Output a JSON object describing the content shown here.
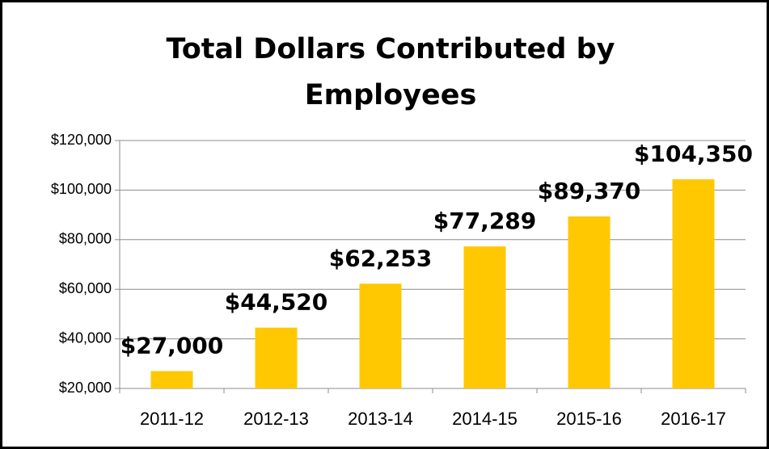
{
  "chart_data": {
    "type": "bar",
    "title": "Total Dollars Contributed by Employees",
    "categories": [
      "2011-12",
      "2012-13",
      "2013-14",
      "2014-15",
      "2015-16",
      "2016-17"
    ],
    "values": [
      27000,
      44520,
      62253,
      77289,
      89370,
      104350
    ],
    "value_labels": [
      "$27,000",
      "$44,520",
      "$62,253",
      "$77,289",
      "$89,370",
      "$104,350"
    ],
    "color": "#ffc800",
    "ylim": [
      20000,
      120000
    ],
    "yticks": [
      {
        "value": 20000,
        "label": "$20,000"
      },
      {
        "value": 40000,
        "label": "$40,000"
      },
      {
        "value": 60000,
        "label": "$60,000"
      },
      {
        "value": 80000,
        "label": "$80,000"
      },
      {
        "value": 100000,
        "label": "$100,000"
      },
      {
        "value": 120000,
        "label": "$120,000"
      }
    ],
    "grid": true
  }
}
